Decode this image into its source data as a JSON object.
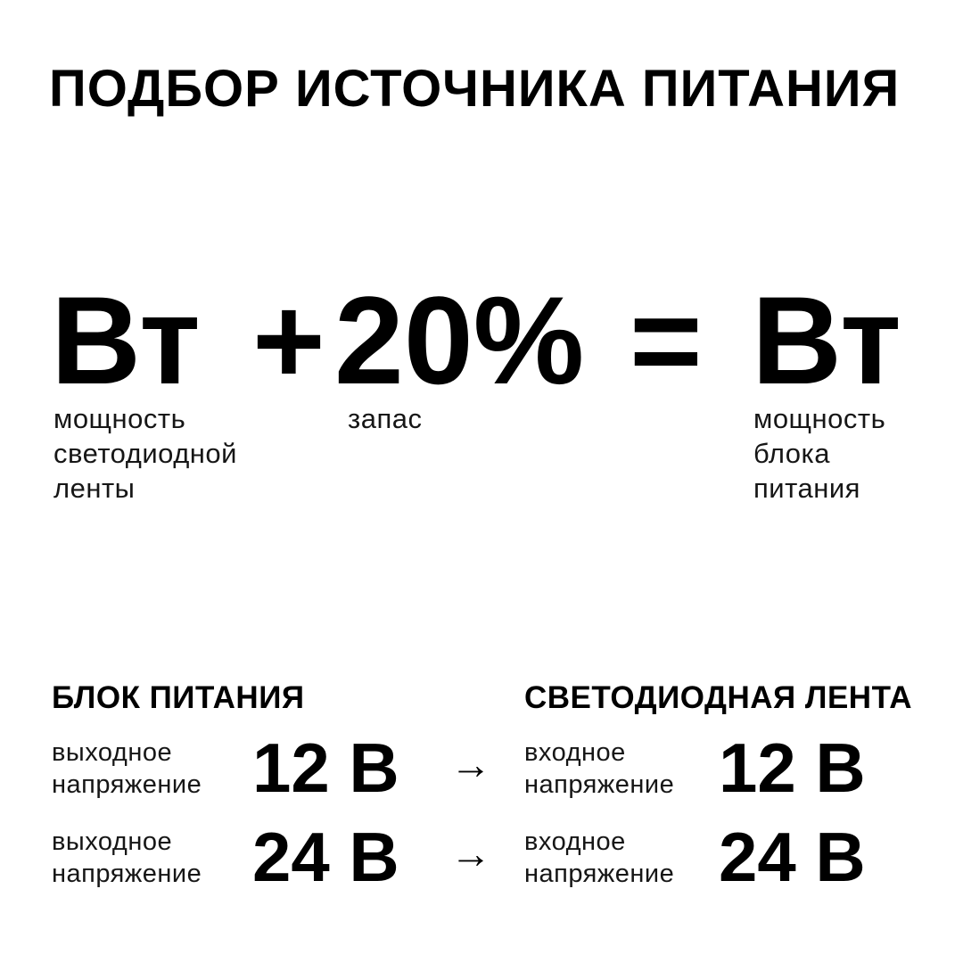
{
  "title": "ПОДБОР ИСТОЧНИКА ПИТАНИЯ",
  "formula": {
    "term1": {
      "value": "Вт",
      "label_lines": [
        "мощность",
        "светодиодной",
        "ленты"
      ]
    },
    "operator_plus": "+",
    "term2": {
      "value": "20%",
      "label_lines": [
        "запас"
      ]
    },
    "operator_equals": "=",
    "term3": {
      "value": "Вт",
      "label_lines": [
        "мощность",
        "блока",
        "питания"
      ]
    }
  },
  "table": {
    "arrow": "→",
    "left_column": {
      "header": "БЛОК ПИТАНИЯ",
      "rows": [
        {
          "label_line1": "выходное",
          "label_line2": "напряжение",
          "value": "12 В"
        },
        {
          "label_line1": "выходное",
          "label_line2": "напряжение",
          "value": "24 В"
        }
      ]
    },
    "right_column": {
      "header": "СВЕТОДИОДНАЯ ЛЕНТА",
      "rows": [
        {
          "label_line1": "входное",
          "label_line2": "напряжение",
          "value": "12 В"
        },
        {
          "label_line1": "входное",
          "label_line2": "напряжение",
          "value": "24 В"
        }
      ]
    }
  },
  "colors": {
    "background": "#ffffff",
    "text": "#000000"
  }
}
